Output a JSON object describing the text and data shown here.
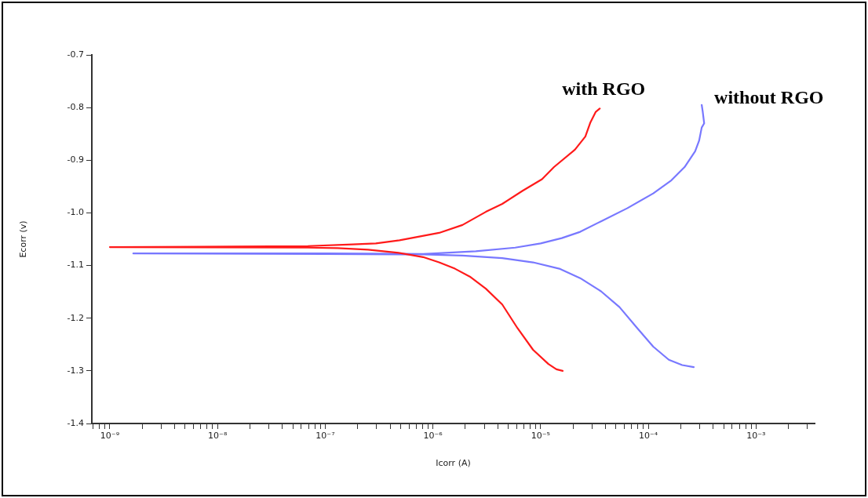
{
  "chart_data": {
    "type": "line",
    "xlabel": "Icorr (A)",
    "ylabel": "Ecorr (v)",
    "log": "x",
    "legend": false,
    "grid": false,
    "marker": "none",
    "line_style": "solid",
    "xlim": [
      6.8e-10,
      0.0035
    ],
    "ylim": [
      -1.4,
      -0.7
    ],
    "xticks": [
      {
        "value": 7e-10,
        "label": null
      },
      {
        "value": 8e-10,
        "label": null
      },
      {
        "value": 9e-10,
        "label": null
      },
      {
        "value": 1e-09,
        "label": "10⁻⁹"
      },
      {
        "value": 2e-09,
        "label": null
      },
      {
        "value": 3e-09,
        "label": null
      },
      {
        "value": 4e-09,
        "label": null
      },
      {
        "value": 5e-09,
        "label": null
      },
      {
        "value": 6e-09,
        "label": null
      },
      {
        "value": 7e-09,
        "label": null
      },
      {
        "value": 8e-09,
        "label": null
      },
      {
        "value": 9e-09,
        "label": null
      },
      {
        "value": 1e-08,
        "label": "10⁻⁸"
      },
      {
        "value": 2e-08,
        "label": null
      },
      {
        "value": 3e-08,
        "label": null
      },
      {
        "value": 4e-08,
        "label": null
      },
      {
        "value": 5e-08,
        "label": null
      },
      {
        "value": 6e-08,
        "label": null
      },
      {
        "value": 7e-08,
        "label": null
      },
      {
        "value": 8e-08,
        "label": null
      },
      {
        "value": 9e-08,
        "label": null
      },
      {
        "value": 1e-07,
        "label": "10⁻⁷"
      },
      {
        "value": 2e-07,
        "label": null
      },
      {
        "value": 3e-07,
        "label": null
      },
      {
        "value": 4e-07,
        "label": null
      },
      {
        "value": 5e-07,
        "label": null
      },
      {
        "value": 6e-07,
        "label": null
      },
      {
        "value": 7e-07,
        "label": null
      },
      {
        "value": 8e-07,
        "label": null
      },
      {
        "value": 9e-07,
        "label": null
      },
      {
        "value": 1e-06,
        "label": "10⁻⁶"
      },
      {
        "value": 2e-06,
        "label": null
      },
      {
        "value": 3e-06,
        "label": null
      },
      {
        "value": 4e-06,
        "label": null
      },
      {
        "value": 5e-06,
        "label": null
      },
      {
        "value": 6e-06,
        "label": null
      },
      {
        "value": 7e-06,
        "label": null
      },
      {
        "value": 8e-06,
        "label": null
      },
      {
        "value": 9e-06,
        "label": null
      },
      {
        "value": 1e-05,
        "label": "10⁻⁵"
      },
      {
        "value": 2e-05,
        "label": null
      },
      {
        "value": 3e-05,
        "label": null
      },
      {
        "value": 4e-05,
        "label": null
      },
      {
        "value": 5e-05,
        "label": null
      },
      {
        "value": 6e-05,
        "label": null
      },
      {
        "value": 7e-05,
        "label": null
      },
      {
        "value": 8e-05,
        "label": null
      },
      {
        "value": 9e-05,
        "label": null
      },
      {
        "value": 0.0001,
        "label": "10⁻⁴"
      },
      {
        "value": 0.0002,
        "label": null
      },
      {
        "value": 0.0003,
        "label": null
      },
      {
        "value": 0.0004,
        "label": null
      },
      {
        "value": 0.0005,
        "label": null
      },
      {
        "value": 0.0006,
        "label": null
      },
      {
        "value": 0.0007,
        "label": null
      },
      {
        "value": 0.0008,
        "label": null
      },
      {
        "value": 0.0009,
        "label": null
      },
      {
        "value": 0.001,
        "label": "10⁻³"
      },
      {
        "value": 0.002,
        "label": null
      },
      {
        "value": 0.003,
        "label": null
      }
    ],
    "yticks": [
      -1.4,
      -1.3,
      -1.2,
      -1.1,
      {
        "value": -1,
        "label": "-1.0"
      },
      -0.9,
      -0.8,
      -0.7
    ],
    "series": [
      {
        "name": "with RGO",
        "color": "#ff1a1a",
        "x": [
          1.6e-05,
          1.4e-05,
          1.18e-05,
          8.5e-06,
          6.1e-06,
          4.4e-06,
          3.1e-06,
          2.2e-06,
          1.6e-06,
          1.14e-06,
          8.1e-07,
          4.8e-07,
          2.5e-07,
          1.3e-07,
          6.9e-08,
          1e-09,
          1.4e-08,
          6.9e-08,
          1.8e-07,
          2.95e-07,
          4.9e-07,
          1.14e-06,
          1.88e-06,
          3.1e-06,
          4.4e-06,
          6.8e-06,
          1.03e-05,
          1.33e-05,
          2.08e-05,
          2.6e-05,
          2.9e-05,
          3.25e-05,
          3.54e-05
        ],
        "values": [
          -1.3,
          -1.297,
          -1.287,
          -1.26,
          -1.219,
          -1.174,
          -1.144,
          -1.121,
          -1.106,
          -1.094,
          -1.084,
          -1.076,
          -1.07,
          -1.067,
          -1.066,
          -1.065,
          -1.064,
          -1.063,
          -1.06,
          -1.058,
          -1.052,
          -1.038,
          -1.023,
          -0.998,
          -0.983,
          -0.958,
          -0.936,
          -0.913,
          -0.88,
          -0.855,
          -0.828,
          -0.808,
          -0.802
        ]
      },
      {
        "name": "without RGO",
        "color": "#7878ff",
        "x": [
          0.000264,
          0.000206,
          0.000155,
          0.000111,
          7.9e-05,
          5.4e-05,
          3.64e-05,
          2.33e-05,
          1.49e-05,
          8.5e-06,
          4.4e-06,
          1.88e-06,
          8.1e-07,
          1e-07,
          1.65e-09,
          1e-07,
          8.1e-07,
          2.5e-06,
          5.8e-06,
          1e-05,
          1.57e-05,
          2.33e-05,
          3.64e-05,
          6.4e-05,
          0.000111,
          0.000164,
          0.000217,
          0.000272,
          0.000296,
          0.000313,
          0.00033,
          0.00032,
          0.000313
        ],
        "values": [
          -1.293,
          -1.289,
          -1.279,
          -1.254,
          -1.219,
          -1.179,
          -1.149,
          -1.124,
          -1.106,
          -1.094,
          -1.086,
          -1.081,
          -1.079,
          -1.078,
          -1.077,
          -1.077,
          -1.078,
          -1.073,
          -1.066,
          -1.058,
          -1.048,
          -1.036,
          -1.016,
          -0.991,
          -0.963,
          -0.938,
          -0.913,
          -0.883,
          -0.863,
          -0.838,
          -0.83,
          -0.808,
          -0.795
        ]
      }
    ]
  }
}
